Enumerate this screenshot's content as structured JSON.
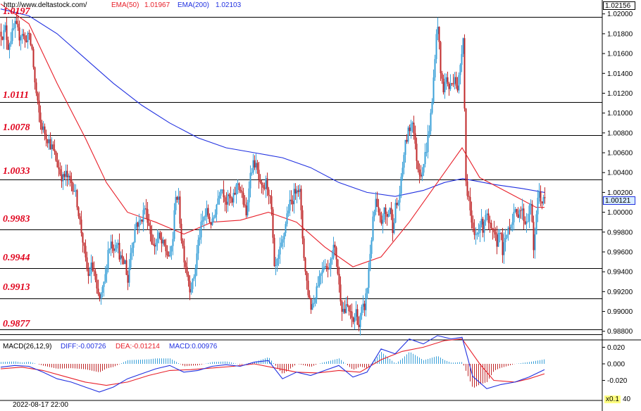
{
  "header": {
    "url": "http://www.deltastock.com/",
    "ema50_label": "EMA(50)",
    "ema50_value": "1.01967",
    "ema200_label": "EMA(200)",
    "ema200_value": "1.02103",
    "top_price": "1.02156",
    "current_price": "1.00121"
  },
  "macd_header": {
    "title": "MACD(26,12,9)",
    "diff": "DIFF:-0.00726",
    "dea": "DEA:-0.01214",
    "macd": "MACD:0.00976"
  },
  "footer": {
    "date": "2022-08-17 22:00",
    "zoom": "x0.1",
    "zoom_tail": "40"
  },
  "colors": {
    "bull": "#3aa0d8",
    "bear": "#c0282a",
    "ema50": "#e8202a",
    "ema200": "#2030e0",
    "level_text": "#e0001b",
    "price_box": "#d8ecff"
  },
  "chart_data": [
    {
      "type": "candlestick",
      "ylim": [
        0.9872,
        1.0214
      ],
      "y_ticks": [
        "1.02000",
        "1.01800",
        "1.01600",
        "1.01400",
        "1.01200",
        "1.01000",
        "1.00800",
        "1.00600",
        "1.00400",
        "1.00200",
        "1.00000",
        "0.99800",
        "0.99600",
        "0.99400",
        "0.99200",
        "0.99000",
        "0.98800"
      ],
      "levels": [
        "1.0197",
        "1.0111",
        "1.0078",
        "1.0033",
        "0.9983",
        "0.9944",
        "0.9913",
        "0.9877"
      ],
      "close_path": [
        [
          0,
          1.0182
        ],
        [
          3,
          1.0178
        ],
        [
          6,
          1.0185
        ],
        [
          10,
          1.0168
        ],
        [
          14,
          1.0176
        ],
        [
          20,
          1.0188
        ],
        [
          26,
          1.0178
        ],
        [
          30,
          1.0182
        ],
        [
          34,
          1.0172
        ],
        [
          38,
          1.018
        ],
        [
          44,
          1.0164
        ],
        [
          48,
          1.013
        ],
        [
          52,
          1.0108
        ],
        [
          56,
          1.009
        ],
        [
          60,
          1.0083
        ],
        [
          64,
          1.0078
        ],
        [
          68,
          1.0072
        ],
        [
          72,
          1.0065
        ],
        [
          76,
          1.0058
        ],
        [
          80,
          1.0048
        ],
        [
          84,
          1.004
        ],
        [
          88,
          1.0034
        ],
        [
          92,
          1.0038
        ],
        [
          96,
          1.0032
        ],
        [
          100,
          1.003
        ],
        [
          104,
          1.0024
        ],
        [
          108,
          1.001
        ],
        [
          112,
          0.999
        ],
        [
          116,
          0.9972
        ],
        [
          120,
          0.995
        ],
        [
          124,
          0.9935
        ],
        [
          128,
          0.9945
        ],
        [
          132,
          0.994
        ],
        [
          136,
          0.9918
        ],
        [
          140,
          0.9912
        ],
        [
          144,
          0.992
        ],
        [
          148,
          0.9935
        ],
        [
          152,
          0.9962
        ],
        [
          156,
          0.997
        ],
        [
          160,
          0.9965
        ],
        [
          164,
          0.9972
        ],
        [
          168,
          0.9958
        ],
        [
          172,
          0.9948
        ],
        [
          176,
          0.995
        ],
        [
          180,
          0.993
        ],
        [
          184,
          0.996
        ],
        [
          188,
          0.9975
        ],
        [
          192,
          0.999
        ],
        [
          196,
          0.9988
        ],
        [
          200,
          0.9995
        ],
        [
          204,
          1.0005
        ],
        [
          208,
          0.9995
        ],
        [
          212,
          0.998
        ],
        [
          216,
          0.9965
        ],
        [
          220,
          0.997
        ],
        [
          224,
          0.9975
        ],
        [
          228,
          0.9968
        ],
        [
          232,
          0.9965
        ],
        [
          236,
          0.9958
        ],
        [
          240,
          0.9955
        ],
        [
          244,
          0.9975
        ],
        [
          248,
          1.002
        ],
        [
          252,
          1.001
        ],
        [
          256,
          0.9975
        ],
        [
          260,
          0.9955
        ],
        [
          264,
          0.994
        ],
        [
          268,
          0.9925
        ],
        [
          272,
          0.9928
        ],
        [
          276,
          0.9945
        ],
        [
          280,
          0.997
        ],
        [
          284,
          0.9985
        ],
        [
          288,
          0.9995
        ],
        [
          292,
          1.0
        ],
        [
          296,
          0.9992
        ],
        [
          300,
          0.9988
        ],
        [
          304,
          1.0002
        ],
        [
          308,
          1.0015
        ],
        [
          312,
          1.0028
        ],
        [
          316,
          1.002
        ],
        [
          320,
          1.001
        ],
        [
          324,
          1.0015
        ],
        [
          328,
          1.0008
        ],
        [
          332,
          1.002
        ],
        [
          336,
          1.003
        ],
        [
          340,
          1.0022
        ],
        [
          344,
          1.001
        ],
        [
          348,
          0.9995
        ],
        [
          352,
          1.003
        ],
        [
          356,
          1.0045
        ],
        [
          360,
          1.005
        ],
        [
          364,
          1.004
        ],
        [
          368,
          1.0025
        ],
        [
          372,
          1.002
        ],
        [
          376,
          1.003
        ],
        [
          380,
          1.0022
        ],
        [
          384,
          1.0
        ],
        [
          388,
          0.994
        ],
        [
          392,
          0.9948
        ],
        [
          396,
          0.996
        ],
        [
          400,
          0.997
        ],
        [
          404,
          0.999
        ],
        [
          408,
          1.0005
        ],
        [
          412,
          1.001
        ],
        [
          416,
          1.0018
        ],
        [
          420,
          1.0028
        ],
        [
          424,
          1.002
        ],
        [
          428,
          0.9975
        ],
        [
          432,
          0.994
        ],
        [
          436,
          0.992
        ],
        [
          440,
          0.9905
        ],
        [
          444,
          0.991
        ],
        [
          448,
          0.9925
        ],
        [
          452,
          0.9935
        ],
        [
          456,
          0.9945
        ],
        [
          460,
          0.995
        ],
        [
          464,
          0.994
        ],
        [
          468,
          0.9955
        ],
        [
          472,
          0.9965
        ],
        [
          476,
          0.9955
        ],
        [
          480,
          0.9925
        ],
        [
          484,
          0.9905
        ],
        [
          488,
          0.99
        ],
        [
          492,
          0.9905
        ],
        [
          496,
          0.9895
        ],
        [
          500,
          0.989
        ],
        [
          504,
          0.99
        ],
        [
          508,
          0.9885
        ],
        [
          512,
          0.99
        ],
        [
          516,
          0.9905
        ],
        [
          520,
          0.9925
        ],
        [
          524,
          0.996
        ],
        [
          528,
          0.999
        ],
        [
          532,
          1.001
        ],
        [
          536,
          0.9995
        ],
        [
          540,
          0.999
        ],
        [
          544,
          1.0
        ],
        [
          548,
          0.9995
        ],
        [
          552,
          1.0005
        ],
        [
          556,
          0.9985
        ],
        [
          560,
          1.0005
        ],
        [
          564,
          1.001
        ],
        [
          568,
          1.003
        ],
        [
          572,
          1.006
        ],
        [
          576,
          1.0075
        ],
        [
          580,
          1.0085
        ],
        [
          584,
          1.0095
        ],
        [
          588,
          1.0065
        ],
        [
          592,
          1.0045
        ],
        [
          596,
          1.004
        ],
        [
          600,
          1.005
        ],
        [
          604,
          1.0065
        ],
        [
          608,
          1.0085
        ],
        [
          612,
          1.011
        ],
        [
          616,
          1.016
        ],
        [
          620,
          1.0192
        ],
        [
          624,
          1.014
        ],
        [
          628,
          1.0125
        ],
        [
          632,
          1.0135
        ],
        [
          636,
          1.0125
        ],
        [
          640,
          1.013
        ],
        [
          644,
          1.014
        ],
        [
          648,
          1.012
        ],
        [
          652,
          1.015
        ],
        [
          656,
          1.018
        ],
        [
          660,
          1.003
        ],
        [
          664,
          1.0015
        ],
        [
          668,
          0.9985
        ],
        [
          672,
          0.9975
        ],
        [
          676,
          0.998
        ],
        [
          680,
          0.999
        ],
        [
          684,
          0.9985
        ],
        [
          688,
          1.0
        ],
        [
          692,
          0.9988
        ],
        [
          696,
          0.998
        ],
        [
          700,
          0.9975
        ],
        [
          704,
          0.997
        ],
        [
          708,
          0.9985
        ],
        [
          712,
          0.996
        ],
        [
          716,
          0.997
        ],
        [
          720,
          0.9985
        ],
        [
          724,
          0.999
        ],
        [
          728,
          1.0
        ],
        [
          732,
          0.9995
        ],
        [
          736,
          1.0005
        ],
        [
          740,
          1.0
        ],
        [
          744,
          0.999
        ],
        [
          748,
          0.9995
        ],
        [
          752,
          1.001
        ],
        [
          756,
          0.996
        ],
        [
          760,
          1.0
        ],
        [
          764,
          1.002
        ],
        [
          768,
          1.001
        ],
        [
          772,
          1.0012
        ]
      ],
      "ema50_path": [
        [
          0,
          1.021
        ],
        [
          40,
          1.019
        ],
        [
          80,
          1.013
        ],
        [
          120,
          1.0075
        ],
        [
          150,
          1.003
        ],
        [
          180,
          1.0
        ],
        [
          220,
          0.999
        ],
        [
          260,
          0.9978
        ],
        [
          300,
          0.999
        ],
        [
          340,
          0.9992
        ],
        [
          380,
          1.0
        ],
        [
          420,
          0.999
        ],
        [
          460,
          0.9965
        ],
        [
          500,
          0.9945
        ],
        [
          540,
          0.9955
        ],
        [
          580,
          0.999
        ],
        [
          620,
          1.003
        ],
        [
          655,
          1.0065
        ],
        [
          680,
          1.0035
        ],
        [
          720,
          1.002
        ],
        [
          760,
          1.0005
        ],
        [
          772,
          1.0005
        ]
      ],
      "ema200_path": [
        [
          0,
          1.0205
        ],
        [
          40,
          1.0198
        ],
        [
          80,
          1.018
        ],
        [
          120,
          1.0155
        ],
        [
          160,
          1.013
        ],
        [
          200,
          1.0108
        ],
        [
          240,
          1.009
        ],
        [
          280,
          1.0075
        ],
        [
          320,
          1.0065
        ],
        [
          360,
          1.006
        ],
        [
          400,
          1.0055
        ],
        [
          440,
          1.0045
        ],
        [
          480,
          1.003
        ],
        [
          520,
          1.002
        ],
        [
          560,
          1.0016
        ],
        [
          600,
          1.0022
        ],
        [
          630,
          1.003
        ],
        [
          656,
          1.0034
        ],
        [
          700,
          1.0028
        ],
        [
          740,
          1.0024
        ],
        [
          772,
          1.002
        ]
      ]
    },
    {
      "type": "macd",
      "ylim": [
        -0.045,
        0.028
      ],
      "y_ticks": [
        "0.020",
        "0.000",
        "-0.020"
      ],
      "bottom_tick": "40",
      "diff_path": [
        [
          0,
          -0.004
        ],
        [
          20,
          -0.002
        ],
        [
          40,
          -0.003
        ],
        [
          60,
          -0.01
        ],
        [
          80,
          -0.018
        ],
        [
          100,
          -0.022
        ],
        [
          120,
          -0.028
        ],
        [
          140,
          -0.034
        ],
        [
          160,
          -0.028
        ],
        [
          180,
          -0.018
        ],
        [
          200,
          -0.012
        ],
        [
          220,
          -0.006
        ],
        [
          240,
          -0.002
        ],
        [
          260,
          -0.01
        ],
        [
          280,
          -0.008
        ],
        [
          300,
          -0.003
        ],
        [
          320,
          -0.001
        ],
        [
          340,
          -0.003
        ],
        [
          360,
          0.002
        ],
        [
          380,
          0.004
        ],
        [
          400,
          -0.018
        ],
        [
          420,
          -0.01
        ],
        [
          440,
          -0.014
        ],
        [
          460,
          -0.008
        ],
        [
          480,
          -0.002
        ],
        [
          500,
          -0.016
        ],
        [
          520,
          -0.01
        ],
        [
          540,
          0.018
        ],
        [
          560,
          0.012
        ],
        [
          580,
          0.03
        ],
        [
          600,
          0.024
        ],
        [
          620,
          0.034
        ],
        [
          640,
          0.03
        ],
        [
          655,
          0.032
        ],
        [
          670,
          -0.015
        ],
        [
          690,
          -0.03
        ],
        [
          710,
          -0.025
        ],
        [
          730,
          -0.022
        ],
        [
          750,
          -0.016
        ],
        [
          772,
          -0.007
        ]
      ],
      "dea_path": [
        [
          0,
          -0.006
        ],
        [
          30,
          -0.004
        ],
        [
          60,
          -0.008
        ],
        [
          90,
          -0.015
        ],
        [
          120,
          -0.022
        ],
        [
          150,
          -0.026
        ],
        [
          180,
          -0.022
        ],
        [
          210,
          -0.014
        ],
        [
          240,
          -0.008
        ],
        [
          270,
          -0.007
        ],
        [
          300,
          -0.005
        ],
        [
          330,
          -0.003
        ],
        [
          360,
          0.0
        ],
        [
          390,
          -0.005
        ],
        [
          420,
          -0.01
        ],
        [
          450,
          -0.011
        ],
        [
          480,
          -0.008
        ],
        [
          510,
          -0.01
        ],
        [
          540,
          0.005
        ],
        [
          570,
          0.015
        ],
        [
          600,
          0.02
        ],
        [
          630,
          0.028
        ],
        [
          655,
          0.03
        ],
        [
          680,
          0.0
        ],
        [
          700,
          -0.02
        ],
        [
          730,
          -0.022
        ],
        [
          750,
          -0.018
        ],
        [
          772,
          -0.012
        ]
      ]
    }
  ]
}
